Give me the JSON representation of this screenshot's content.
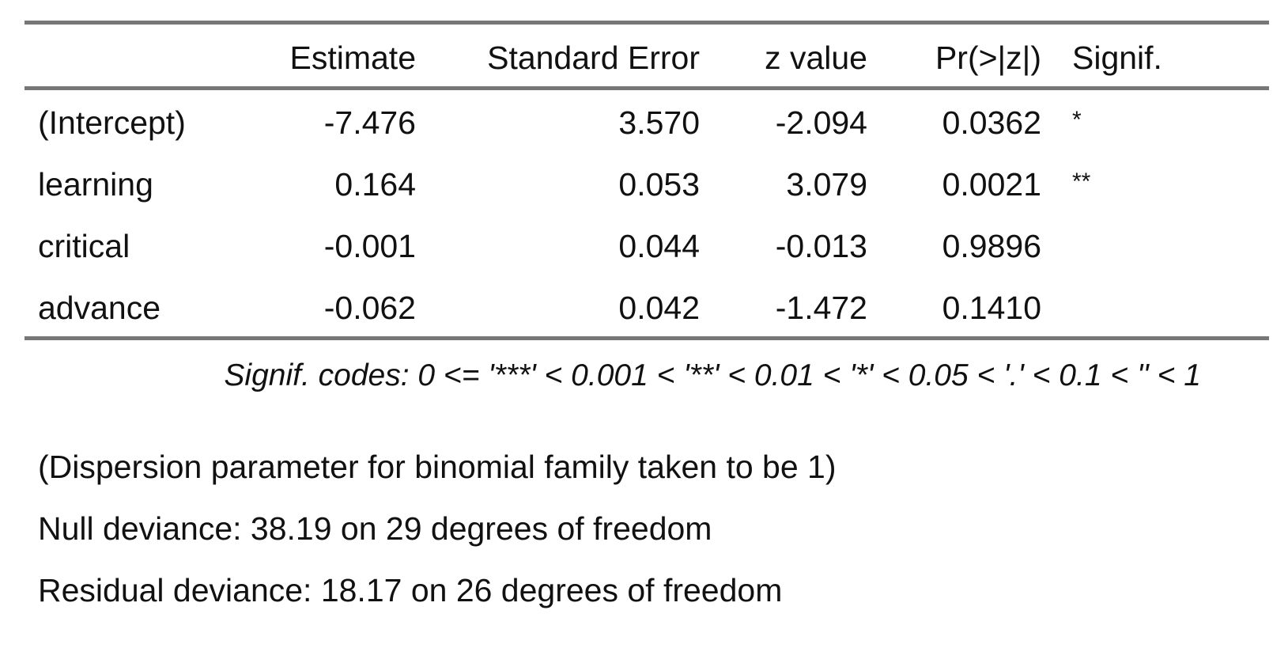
{
  "table": {
    "headers": [
      "",
      "Estimate",
      "Standard Error",
      "z value",
      "Pr(>|z|)",
      "Signif."
    ],
    "rows": [
      {
        "term": "(Intercept)",
        "estimate": "-7.476",
        "std_error": "3.570",
        "z_value": "-2.094",
        "p_value": "0.0362",
        "signif": "*"
      },
      {
        "term": "learning",
        "estimate": "0.164",
        "std_error": "0.053",
        "z_value": "3.079",
        "p_value": "0.0021",
        "signif": "**"
      },
      {
        "term": "critical",
        "estimate": "-0.001",
        "std_error": "0.044",
        "z_value": "-0.013",
        "p_value": "0.9896",
        "signif": ""
      },
      {
        "term": "advance",
        "estimate": "-0.062",
        "std_error": "0.042",
        "z_value": "-1.472",
        "p_value": "0.1410",
        "signif": ""
      }
    ]
  },
  "signif_codes": "Signif. codes: 0 <= '***' < 0.001 < '**' < 0.01 < '*' < 0.05 < '.' < 0.1 < '' < 1",
  "footer": {
    "dispersion": "(Dispersion parameter for binomial family taken to be 1)",
    "null_deviance": "Null deviance: 38.19 on 29 degrees of freedom",
    "residual_deviance": "Residual deviance: 18.17 on 26 degrees of freedom"
  }
}
